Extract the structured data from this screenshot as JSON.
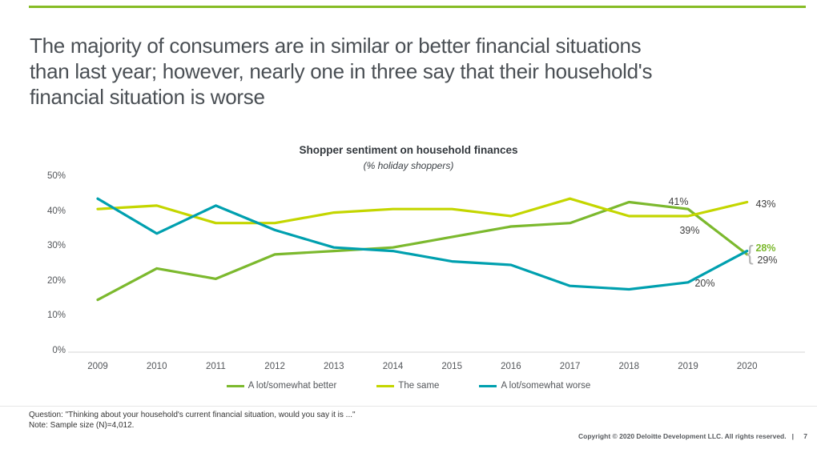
{
  "slide": {
    "title_lines": [
      "The majority of consumers are in similar or better financial situations",
      "than last year; however, nearly one in three say that their household's",
      "financial situation is worse"
    ],
    "accent_color": "#86BC25"
  },
  "chart_data": {
    "type": "line",
    "title": "Shopper sentiment on household finances",
    "subtitle": "(% holiday shoppers)",
    "categories": [
      "2009",
      "2010",
      "2011",
      "2012",
      "2013",
      "2014",
      "2015",
      "2016",
      "2017",
      "2018",
      "2019",
      "2020"
    ],
    "series": [
      {
        "name": "A lot/somewhat better",
        "color": "#7CB92E",
        "values": [
          15,
          24,
          21,
          28,
          29,
          30,
          33,
          36,
          37,
          43,
          41,
          28
        ]
      },
      {
        "name": "The same",
        "color": "#C4D600",
        "values": [
          41,
          42,
          37,
          37,
          40,
          41,
          41,
          39,
          44,
          39,
          39,
          43
        ]
      },
      {
        "name": "A lot/somewhat worse",
        "color": "#00A0AF",
        "values": [
          44,
          34,
          42,
          35,
          30,
          29,
          26,
          25,
          19,
          18,
          20,
          29
        ]
      }
    ],
    "xlabel": "",
    "ylabel": "",
    "ylim": [
      0,
      50
    ],
    "yticks": [
      "0%",
      "10%",
      "20%",
      "30%",
      "40%",
      "50%"
    ],
    "grid": false,
    "legend_position": "bottom",
    "annotations": [
      {
        "text": "41%",
        "series": "A lot/somewhat better",
        "year": "2019",
        "value": 41
      },
      {
        "text": "39%",
        "series": "The same",
        "year": "2019",
        "value": 39
      },
      {
        "text": "43%",
        "series": "The same",
        "year": "2020",
        "value": 43
      },
      {
        "text": "28%",
        "series": "A lot/somewhat better",
        "year": "2020",
        "value": 28
      },
      {
        "text": "29%",
        "series": "A lot/somewhat worse",
        "year": "2020",
        "value": 29
      },
      {
        "text": "20%",
        "series": "A lot/somewhat worse",
        "year": "2019",
        "value": 20
      }
    ],
    "bracket_glyph": "{"
  },
  "footer": {
    "question": "Question: \"Thinking about your household's current financial situation, would you say it is ...\"",
    "note": "Note: Sample size (N)=4,012.",
    "copyright": "Copyright © 2020 Deloitte Development LLC. All rights reserved.",
    "separator": "|",
    "page_number": "7"
  }
}
